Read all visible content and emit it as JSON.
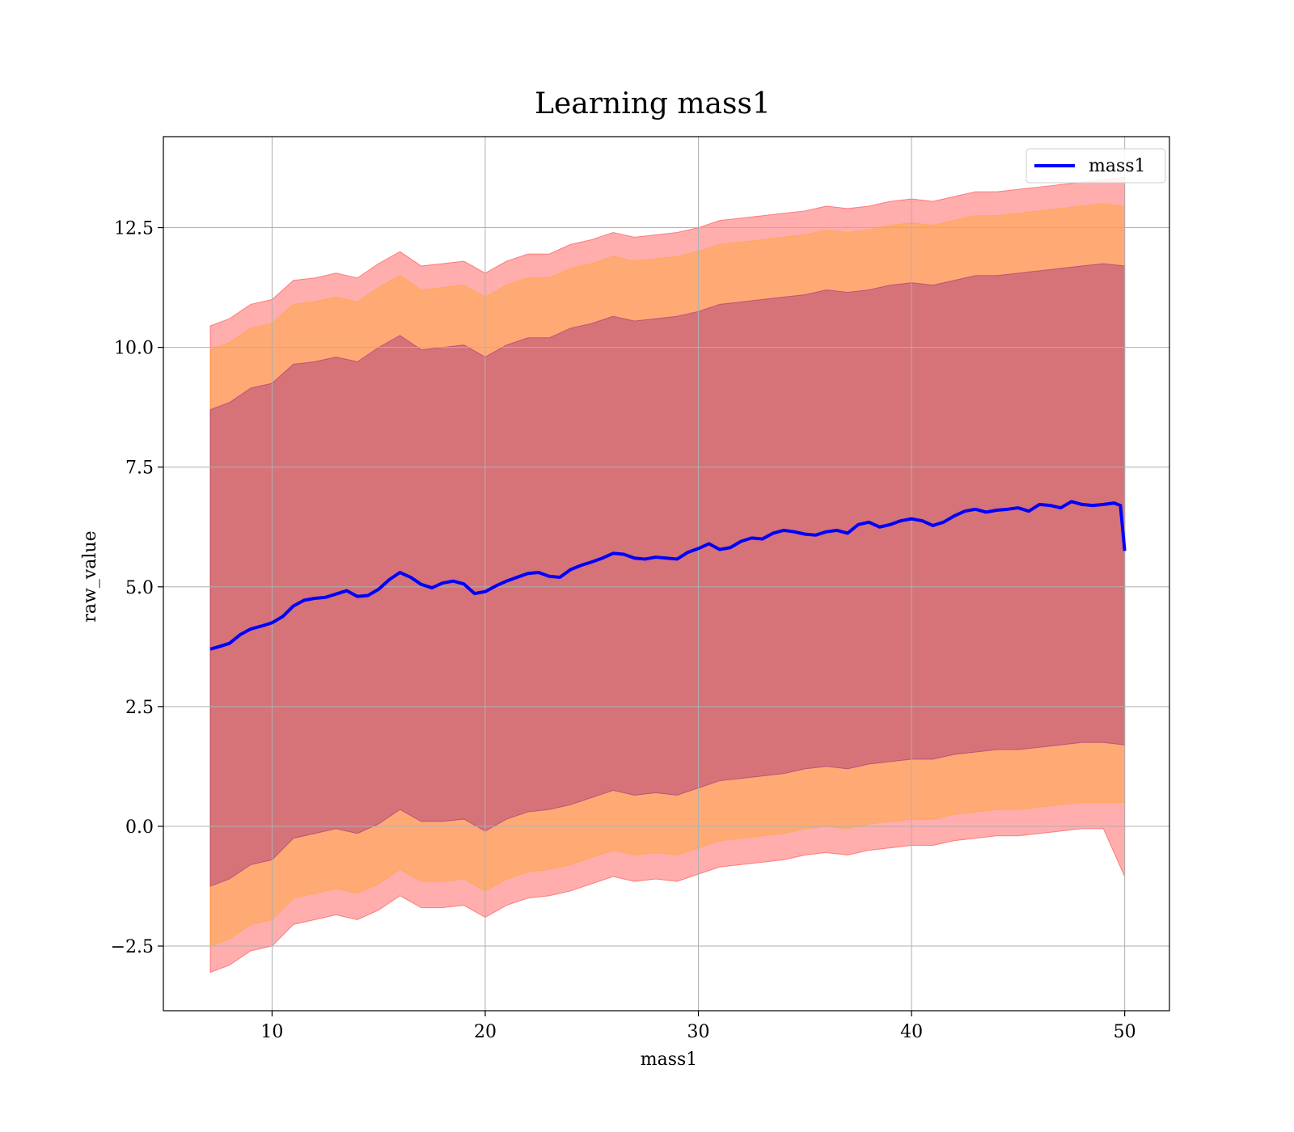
{
  "chart_data": {
    "type": "area",
    "title": "Learning mass1",
    "xlabel": "mass1",
    "ylabel": "raw_value",
    "xlim": [
      4.9,
      52.1
    ],
    "ylim": [
      -3.85,
      14.4
    ],
    "xticks": [
      10,
      20,
      30,
      40,
      50
    ],
    "yticks": [
      -2.5,
      0.0,
      2.5,
      5.0,
      7.5,
      10.0,
      12.5
    ],
    "xtick_labels": [
      "10",
      "20",
      "30",
      "40",
      "50"
    ],
    "ytick_labels": [
      "−2.5",
      "0.0",
      "2.5",
      "5.0",
      "7.5",
      "10.0",
      "12.5"
    ],
    "grid": true,
    "legend_position": "top-right",
    "legend": [
      {
        "label": "mass1",
        "color": "#0000ff"
      }
    ],
    "line": {
      "color": "#0000ff",
      "x": [
        7.1,
        7.5,
        8,
        8.5,
        9,
        9.5,
        10,
        10.5,
        11,
        11.5,
        12,
        12.5,
        13,
        13.5,
        14,
        14.5,
        15,
        15.5,
        16,
        16.5,
        17,
        17.5,
        18,
        18.5,
        19,
        19.5,
        20,
        20.5,
        21,
        21.5,
        22,
        22.5,
        23,
        23.5,
        24,
        24.5,
        25,
        25.5,
        26,
        26.5,
        27,
        27.5,
        28,
        28.5,
        29,
        29.5,
        30,
        30.5,
        31,
        31.5,
        32,
        32.5,
        33,
        33.5,
        34,
        34.5,
        35,
        35.5,
        36,
        36.5,
        37,
        37.5,
        38,
        38.5,
        39,
        39.5,
        40,
        40.5,
        41,
        41.5,
        42,
        42.5,
        43,
        43.5,
        44,
        44.5,
        45,
        45.5,
        46,
        46.5,
        47,
        47.5,
        48,
        48.5,
        49,
        49.5,
        49.8,
        50
      ],
      "y": [
        3.7,
        3.75,
        3.82,
        4.0,
        4.12,
        4.18,
        4.25,
        4.38,
        4.6,
        4.72,
        4.76,
        4.78,
        4.85,
        4.92,
        4.8,
        4.82,
        4.95,
        5.15,
        5.3,
        5.2,
        5.05,
        4.98,
        5.08,
        5.12,
        5.06,
        4.86,
        4.9,
        5.02,
        5.12,
        5.2,
        5.28,
        5.3,
        5.22,
        5.2,
        5.36,
        5.45,
        5.52,
        5.6,
        5.7,
        5.68,
        5.6,
        5.58,
        5.62,
        5.6,
        5.58,
        5.72,
        5.8,
        5.9,
        5.78,
        5.82,
        5.95,
        6.02,
        6.0,
        6.12,
        6.18,
        6.15,
        6.1,
        6.08,
        6.15,
        6.18,
        6.12,
        6.3,
        6.35,
        6.25,
        6.3,
        6.38,
        6.42,
        6.38,
        6.28,
        6.35,
        6.48,
        6.58,
        6.62,
        6.56,
        6.6,
        6.62,
        6.65,
        6.58,
        6.72,
        6.7,
        6.65,
        6.78,
        6.72,
        6.7,
        6.72,
        6.75,
        6.7,
        5.75
      ]
    },
    "bands": [
      {
        "color": "#ff0000",
        "opacity": 0.32,
        "sigma": 3,
        "x": [
          7.1,
          8,
          9,
          10,
          11,
          12,
          13,
          14,
          15,
          16,
          17,
          18,
          19,
          20,
          21,
          22,
          23,
          24,
          25,
          26,
          27,
          28,
          29,
          30,
          31,
          32,
          33,
          34,
          35,
          36,
          37,
          38,
          39,
          40,
          41,
          42,
          43,
          44,
          45,
          46,
          47,
          48,
          49,
          50
        ],
        "upper": [
          10.45,
          10.6,
          10.9,
          11.0,
          11.4,
          11.45,
          11.55,
          11.45,
          11.75,
          12.0,
          11.7,
          11.75,
          11.8,
          11.55,
          11.8,
          11.95,
          11.95,
          12.15,
          12.25,
          12.4,
          12.3,
          12.35,
          12.4,
          12.5,
          12.65,
          12.7,
          12.75,
          12.8,
          12.85,
          12.95,
          12.9,
          12.95,
          13.05,
          13.1,
          13.05,
          13.15,
          13.25,
          13.25,
          13.3,
          13.35,
          13.4,
          13.45,
          13.5,
          13.55
        ],
        "lower": [
          -3.05,
          -2.9,
          -2.6,
          -2.5,
          -2.05,
          -1.95,
          -1.85,
          -1.95,
          -1.75,
          -1.45,
          -1.7,
          -1.7,
          -1.65,
          -1.9,
          -1.65,
          -1.5,
          -1.45,
          -1.35,
          -1.2,
          -1.05,
          -1.15,
          -1.1,
          -1.15,
          -1.0,
          -0.85,
          -0.8,
          -0.75,
          -0.7,
          -0.6,
          -0.55,
          -0.6,
          -0.5,
          -0.45,
          -0.4,
          -0.4,
          -0.3,
          -0.25,
          -0.2,
          -0.2,
          -0.15,
          -0.1,
          -0.05,
          -0.05,
          -1.05
        ]
      },
      {
        "color": "#ffa500",
        "opacity": 0.32,
        "sigma": 2,
        "x": [
          7.1,
          8,
          9,
          10,
          11,
          12,
          13,
          14,
          15,
          16,
          17,
          18,
          19,
          20,
          21,
          22,
          23,
          24,
          25,
          26,
          27,
          28,
          29,
          30,
          31,
          32,
          33,
          34,
          35,
          36,
          37,
          38,
          39,
          40,
          41,
          42,
          43,
          44,
          45,
          46,
          47,
          48,
          49,
          50
        ],
        "upper": [
          9.95,
          10.1,
          10.4,
          10.5,
          10.9,
          10.95,
          11.05,
          10.95,
          11.25,
          11.5,
          11.2,
          11.25,
          11.3,
          11.05,
          11.3,
          11.45,
          11.45,
          11.65,
          11.75,
          11.9,
          11.8,
          11.85,
          11.9,
          12.0,
          12.15,
          12.2,
          12.25,
          12.3,
          12.35,
          12.45,
          12.4,
          12.45,
          12.55,
          12.6,
          12.55,
          12.65,
          12.75,
          12.75,
          12.8,
          12.85,
          12.9,
          12.95,
          13.0,
          12.95
        ],
        "lower": [
          -2.5,
          -2.35,
          -2.05,
          -1.95,
          -1.5,
          -1.4,
          -1.3,
          -1.4,
          -1.2,
          -0.9,
          -1.15,
          -1.15,
          -1.1,
          -1.35,
          -1.1,
          -0.95,
          -0.9,
          -0.8,
          -0.65,
          -0.5,
          -0.6,
          -0.55,
          -0.6,
          -0.45,
          -0.3,
          -0.25,
          -0.2,
          -0.15,
          -0.05,
          0.0,
          -0.05,
          0.05,
          0.1,
          0.15,
          0.15,
          0.25,
          0.3,
          0.35,
          0.35,
          0.4,
          0.45,
          0.5,
          0.5,
          0.5
        ]
      },
      {
        "color": "#800080",
        "opacity": 0.32,
        "sigma": 1,
        "x": [
          7.1,
          8,
          9,
          10,
          11,
          12,
          13,
          14,
          15,
          16,
          17,
          18,
          19,
          20,
          21,
          22,
          23,
          24,
          25,
          26,
          27,
          28,
          29,
          30,
          31,
          32,
          33,
          34,
          35,
          36,
          37,
          38,
          39,
          40,
          41,
          42,
          43,
          44,
          45,
          46,
          47,
          48,
          49,
          50
        ],
        "upper": [
          8.7,
          8.85,
          9.15,
          9.25,
          9.65,
          9.7,
          9.8,
          9.7,
          10.0,
          10.25,
          9.95,
          10.0,
          10.05,
          9.8,
          10.05,
          10.2,
          10.2,
          10.4,
          10.5,
          10.65,
          10.55,
          10.6,
          10.65,
          10.75,
          10.9,
          10.95,
          11.0,
          11.05,
          11.1,
          11.2,
          11.15,
          11.2,
          11.3,
          11.35,
          11.3,
          11.4,
          11.5,
          11.5,
          11.55,
          11.6,
          11.65,
          11.7,
          11.75,
          11.7
        ],
        "lower": [
          -1.25,
          -1.1,
          -0.8,
          -0.7,
          -0.25,
          -0.15,
          -0.05,
          -0.15,
          0.05,
          0.35,
          0.1,
          0.1,
          0.15,
          -0.1,
          0.15,
          0.3,
          0.35,
          0.45,
          0.6,
          0.75,
          0.65,
          0.7,
          0.65,
          0.8,
          0.95,
          1.0,
          1.05,
          1.1,
          1.2,
          1.25,
          1.2,
          1.3,
          1.35,
          1.4,
          1.4,
          1.5,
          1.55,
          1.6,
          1.6,
          1.65,
          1.7,
          1.75,
          1.75,
          1.7
        ]
      }
    ]
  }
}
